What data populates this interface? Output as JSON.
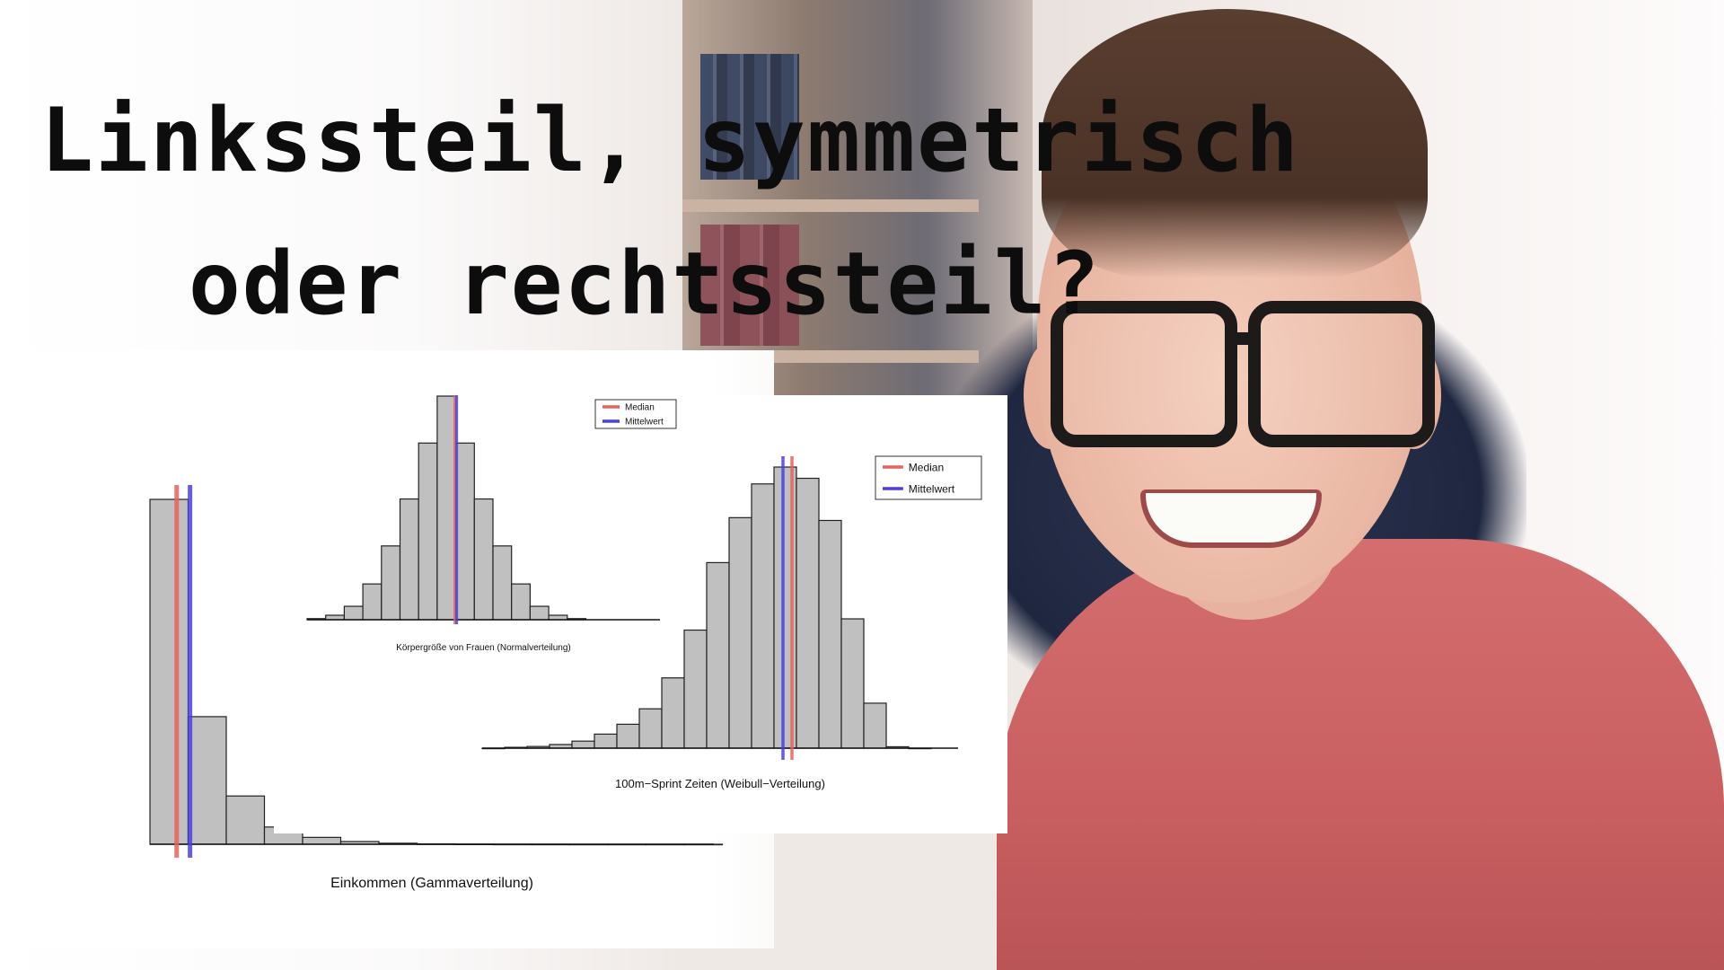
{
  "title": {
    "line1": "Linkssteil, symmetrisch",
    "line2": "oder rechtssteil?"
  },
  "chart_data": [
    {
      "type": "bar",
      "name": "gamma",
      "xlabel": "Einkommen (Gammaverteilung)",
      "values": [
        100,
        37,
        14,
        5,
        2,
        0.8,
        0.3,
        0.1,
        0.05,
        0.02,
        0.01,
        0,
        0,
        0,
        0
      ],
      "ylim": [
        0,
        100
      ],
      "median_bin": 0.7,
      "mean_bin": 1.05,
      "legend": null,
      "colors": {
        "median": "#e8615c",
        "mean": "#4b3fe0",
        "bar": "#c0c0c0"
      }
    },
    {
      "type": "bar",
      "name": "normal",
      "xlabel": "Körpergröße von Frauen (Normalverteilung)",
      "values": [
        0.5,
        2,
        6,
        16,
        33,
        54,
        79,
        100,
        79,
        54,
        33,
        16,
        6,
        2,
        0.5
      ],
      "ylim": [
        0,
        100
      ],
      "median_bin": 7.95,
      "mean_bin": 8.05,
      "legend": {
        "median": "Median",
        "mean": "Mittelwert",
        "placement": "top-right"
      },
      "colors": {
        "median": "#e8615c",
        "mean": "#4b3fe0",
        "bar": "#c0c0c0"
      }
    },
    {
      "type": "bar",
      "name": "weibull",
      "xlabel": "100m−Sprint Zeiten (Weibull−Verteilung)",
      "values": [
        0,
        0.3,
        0.6,
        1.3,
        2.5,
        5,
        8.5,
        14,
        25,
        42,
        66,
        82,
        94,
        100,
        96,
        81,
        46,
        16,
        0.5,
        0
      ],
      "ylim": [
        0,
        100
      ],
      "median_bin": 13.8,
      "mean_bin": 13.4,
      "legend": {
        "median": "Median",
        "mean": "Mittelwert",
        "placement": "top-right"
      },
      "colors": {
        "median": "#e8615c",
        "mean": "#4b3fe0",
        "bar": "#c0c0c0"
      }
    }
  ]
}
